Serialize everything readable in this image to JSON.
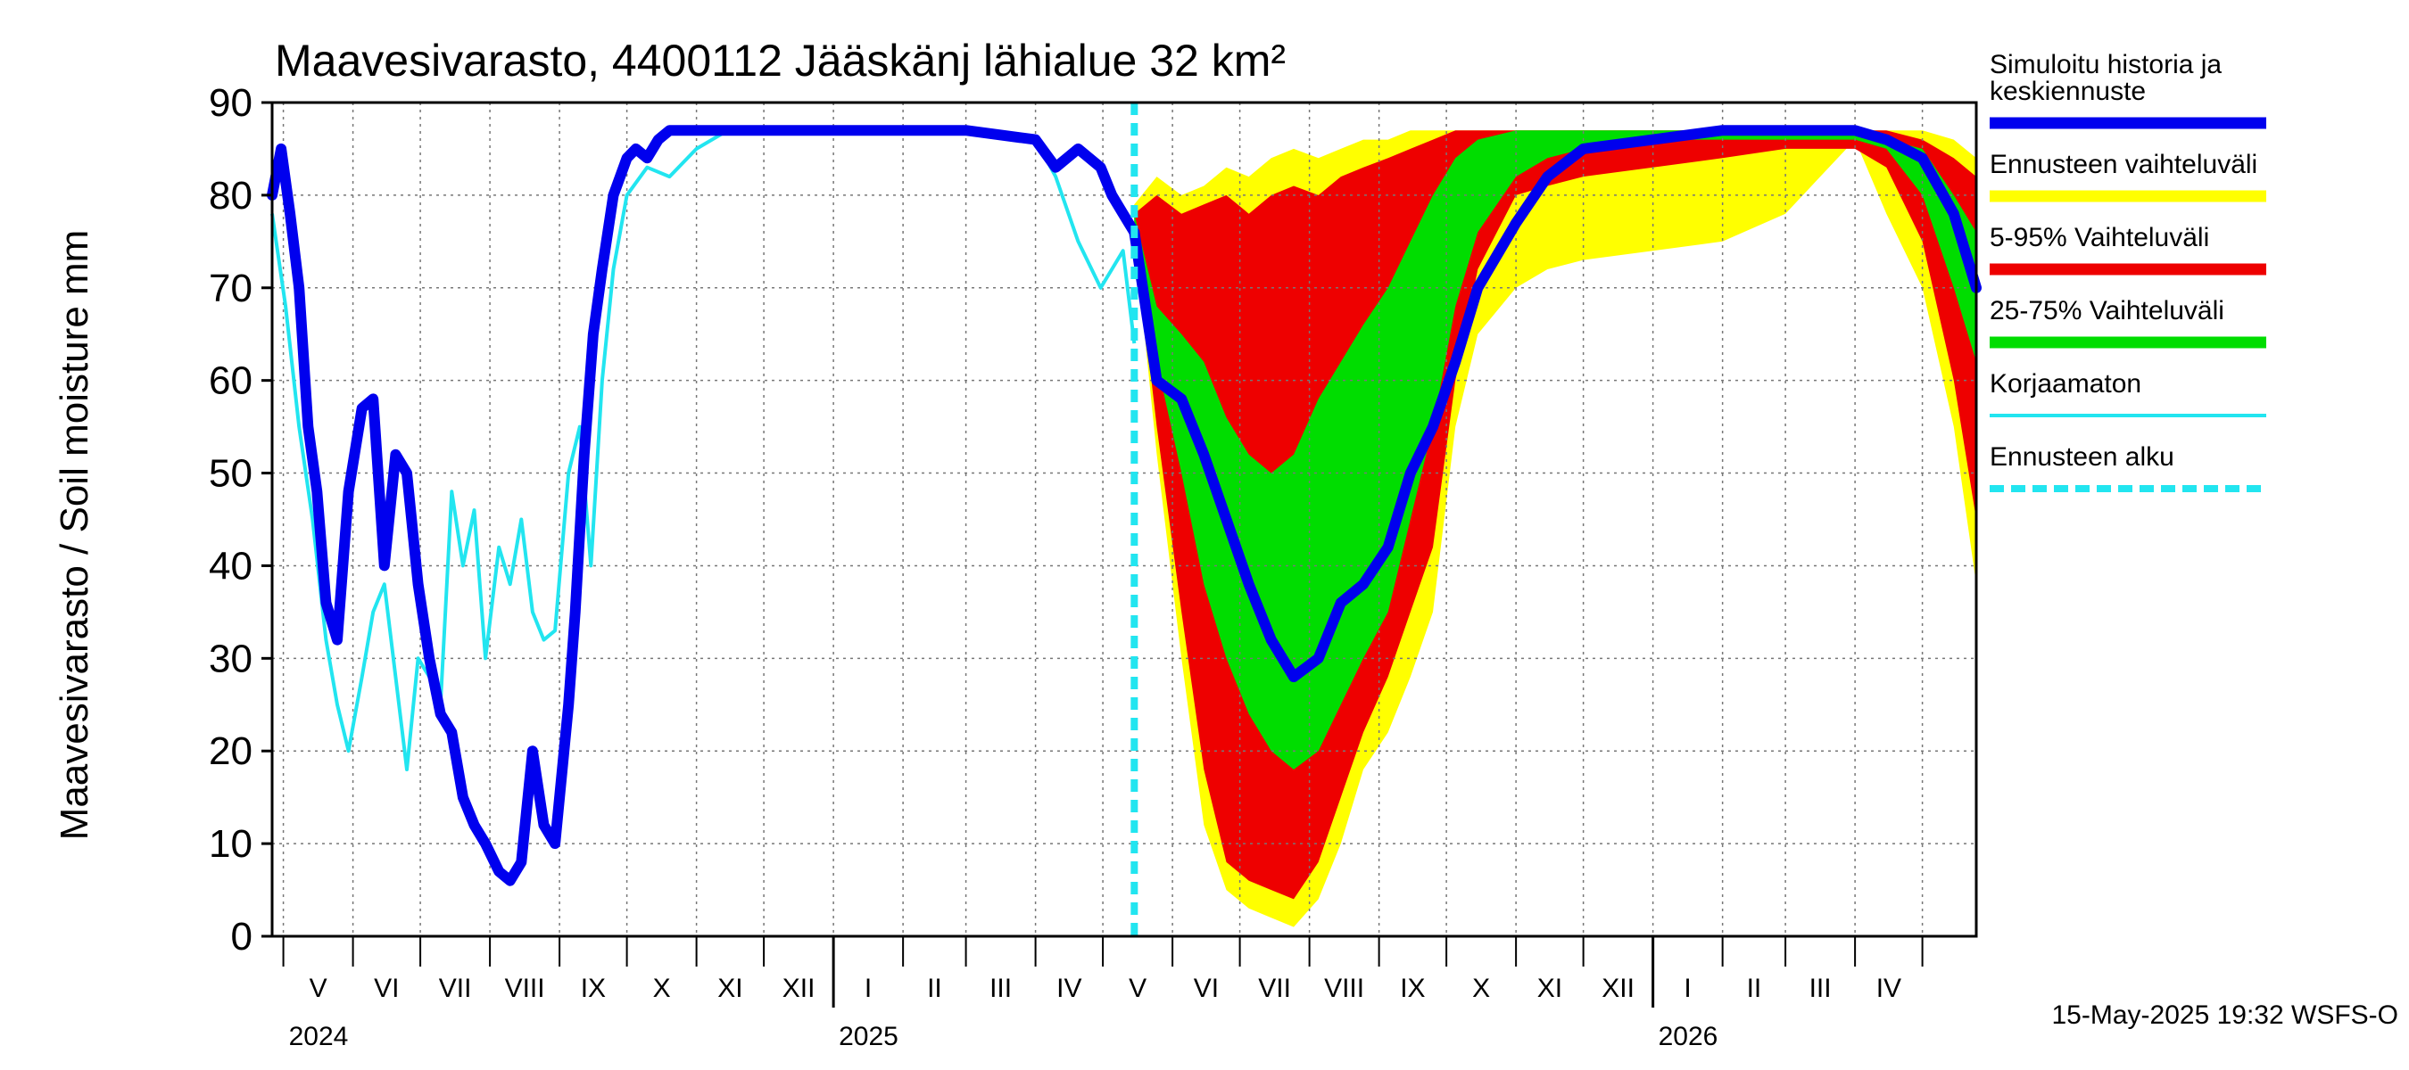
{
  "chart_data": {
    "type": "area",
    "title": "Maavesivarasto, 4400112 Jääskänj lähialue 32 km²",
    "ylabel": "Maavesivarasto / Soil moisture   mm",
    "ylim": [
      0,
      90
    ],
    "yticks": [
      "0",
      "10",
      "20",
      "30",
      "40",
      "50",
      "60",
      "70",
      "80",
      "90"
    ],
    "grid": true,
    "x_range": [
      "2024-04-26",
      "2026-05-25"
    ],
    "forecast_start": "2025-05-15",
    "months": [
      {
        "label": "V",
        "start": "2024-05-01"
      },
      {
        "label": "VI",
        "start": "2024-06-01"
      },
      {
        "label": "VII",
        "start": "2024-07-01"
      },
      {
        "label": "VIII",
        "start": "2024-08-01"
      },
      {
        "label": "IX",
        "start": "2024-09-01"
      },
      {
        "label": "X",
        "start": "2024-10-01"
      },
      {
        "label": "XI",
        "start": "2024-11-01"
      },
      {
        "label": "XII",
        "start": "2024-12-01"
      },
      {
        "label": "I",
        "start": "2025-01-01"
      },
      {
        "label": "II",
        "start": "2025-02-01"
      },
      {
        "label": "III",
        "start": "2025-03-01"
      },
      {
        "label": "IV",
        "start": "2025-04-01"
      },
      {
        "label": "V",
        "start": "2025-05-01"
      },
      {
        "label": "VI",
        "start": "2025-06-01"
      },
      {
        "label": "VII",
        "start": "2025-07-01"
      },
      {
        "label": "VIII",
        "start": "2025-08-01"
      },
      {
        "label": "IX",
        "start": "2025-09-01"
      },
      {
        "label": "X",
        "start": "2025-10-01"
      },
      {
        "label": "XI",
        "start": "2025-11-01"
      },
      {
        "label": "XII",
        "start": "2025-12-01"
      },
      {
        "label": "I",
        "start": "2026-01-01"
      },
      {
        "label": "II",
        "start": "2026-02-01"
      },
      {
        "label": "III",
        "start": "2026-03-01"
      },
      {
        "label": "IV",
        "start": "2026-04-01"
      },
      {
        "label": "",
        "start": "2026-05-01"
      }
    ],
    "years": [
      {
        "label": "2024",
        "date": "2024-05-01"
      },
      {
        "label": "2025",
        "date": "2025-01-01"
      },
      {
        "label": "2026",
        "date": "2026-01-01"
      }
    ],
    "legend_position": "right",
    "legend": [
      {
        "label": "Simuloitu historia ja keskiennuste",
        "lines": [
          "Simuloitu historia ja",
          "keskiennuste"
        ],
        "color": "#0000ee",
        "style": "thick"
      },
      {
        "label": "Ennusteen vaihteluväli",
        "lines": [
          "Ennusteen vaihteluväli"
        ],
        "color": "#ffff00",
        "style": "thick"
      },
      {
        "label": "5-95% Vaihteluväli",
        "lines": [
          "5-95% Vaihteluväli"
        ],
        "color": "#ee0000",
        "style": "thick"
      },
      {
        "label": "25-75% Vaihteluväli",
        "lines": [
          "25-75% Vaihteluväli"
        ],
        "color": "#00dd00",
        "style": "thick"
      },
      {
        "label": "Korjaamaton",
        "lines": [
          "Korjaamaton"
        ],
        "color": "#22e5f0",
        "style": "thin"
      },
      {
        "label": "Ennusteen alku",
        "lines": [
          "Ennusteen alku"
        ],
        "color": "#22e5f0",
        "style": "dashed"
      }
    ],
    "forecast_dates": [
      "2025-05-15",
      "2025-05-25",
      "2025-06-05",
      "2025-06-15",
      "2025-06-25",
      "2025-07-05",
      "2025-07-15",
      "2025-07-25",
      "2025-08-05",
      "2025-08-15",
      "2025-08-25",
      "2025-09-05",
      "2025-09-15",
      "2025-09-25",
      "2025-10-05",
      "2025-10-15",
      "2025-11-01",
      "2025-11-15",
      "2025-12-01",
      "2026-01-01",
      "2026-02-01",
      "2026-03-01",
      "2026-04-01",
      "2026-04-15",
      "2026-05-01",
      "2026-05-15",
      "2026-05-25"
    ],
    "series": [
      {
        "name": "Simuloitu historia ja keskiennuste",
        "color": "#0000ee",
        "x": [
          "2024-04-26",
          "2024-04-30",
          "2024-05-04",
          "2024-05-08",
          "2024-05-12",
          "2024-05-16",
          "2024-05-20",
          "2024-05-25",
          "2024-05-30",
          "2024-06-05",
          "2024-06-10",
          "2024-06-15",
          "2024-06-20",
          "2024-06-25",
          "2024-06-30",
          "2024-07-05",
          "2024-07-10",
          "2024-07-15",
          "2024-07-20",
          "2024-07-25",
          "2024-07-30",
          "2024-08-05",
          "2024-08-10",
          "2024-08-15",
          "2024-08-20",
          "2024-08-25",
          "2024-08-30",
          "2024-09-05",
          "2024-09-08",
          "2024-09-12",
          "2024-09-16",
          "2024-09-20",
          "2024-09-25",
          "2024-10-01",
          "2024-10-05",
          "2024-10-10",
          "2024-10-15",
          "2024-10-20",
          "2024-11-01",
          "2024-11-15",
          "2024-12-01",
          "2025-01-01",
          "2025-02-01",
          "2025-03-01",
          "2025-04-01",
          "2025-04-10",
          "2025-04-20",
          "2025-04-30",
          "2025-05-05",
          "2025-05-10",
          "2025-05-15",
          "2025-05-25",
          "2025-06-05",
          "2025-06-15",
          "2025-06-25",
          "2025-07-05",
          "2025-07-15",
          "2025-07-25",
          "2025-08-05",
          "2025-08-15",
          "2025-08-25",
          "2025-09-05",
          "2025-09-15",
          "2025-09-25",
          "2025-10-05",
          "2025-10-15",
          "2025-11-01",
          "2025-11-15",
          "2025-12-01",
          "2026-01-01",
          "2026-02-01",
          "2026-03-01",
          "2026-04-01",
          "2026-04-15",
          "2026-05-01",
          "2026-05-15",
          "2026-05-25"
        ],
        "y": [
          80,
          85,
          78,
          70,
          55,
          48,
          36,
          32,
          48,
          57,
          58,
          40,
          52,
          50,
          38,
          30,
          24,
          22,
          15,
          12,
          10,
          7,
          6,
          8,
          20,
          12,
          10,
          25,
          35,
          52,
          65,
          72,
          80,
          84,
          85,
          84,
          86,
          87,
          87,
          87,
          87,
          87,
          87,
          87,
          86,
          83,
          85,
          83,
          80,
          78,
          76,
          60,
          58,
          52,
          45,
          38,
          32,
          28,
          30,
          36,
          38,
          42,
          50,
          55,
          62,
          70,
          77,
          82,
          85,
          86,
          87,
          87,
          87,
          86,
          84,
          78,
          70
        ]
      },
      {
        "name": "Korjaamaton",
        "color": "#22e5f0",
        "x": [
          "2024-04-26",
          "2024-05-02",
          "2024-05-08",
          "2024-05-14",
          "2024-05-20",
          "2024-05-25",
          "2024-05-30",
          "2024-06-05",
          "2024-06-10",
          "2024-06-15",
          "2024-06-20",
          "2024-06-25",
          "2024-06-30",
          "2024-07-05",
          "2024-07-10",
          "2024-07-15",
          "2024-07-20",
          "2024-07-25",
          "2024-07-30",
          "2024-08-05",
          "2024-08-10",
          "2024-08-15",
          "2024-08-20",
          "2024-08-25",
          "2024-08-30",
          "2024-09-05",
          "2024-09-10",
          "2024-09-15",
          "2024-09-20",
          "2024-09-25",
          "2024-10-01",
          "2024-10-10",
          "2024-10-20",
          "2024-11-01",
          "2024-11-15",
          "2024-12-01",
          "2025-01-01",
          "2025-02-01",
          "2025-03-01",
          "2025-04-01",
          "2025-04-10",
          "2025-04-20",
          "2025-04-30",
          "2025-05-05",
          "2025-05-10",
          "2025-05-15"
        ],
        "y": [
          78,
          68,
          55,
          45,
          32,
          25,
          20,
          28,
          35,
          38,
          28,
          18,
          30,
          28,
          25,
          48,
          40,
          46,
          30,
          42,
          38,
          45,
          35,
          32,
          33,
          50,
          55,
          40,
          60,
          72,
          80,
          83,
          82,
          85,
          87,
          87,
          87,
          87,
          87,
          86,
          82,
          75,
          70,
          72,
          74,
          64
        ]
      }
    ],
    "bands": [
      {
        "name": "Ennusteen vaihteluväli",
        "color": "#ffff00",
        "low": [
          76,
          52,
          30,
          12,
          5,
          3,
          2,
          1,
          4,
          10,
          18,
          22,
          28,
          35,
          55,
          65,
          70,
          72,
          73,
          74,
          75,
          78,
          86,
          78,
          70,
          55,
          38
        ],
        "high": [
          79,
          82,
          80,
          81,
          83,
          82,
          84,
          85,
          84,
          85,
          86,
          86,
          87,
          87,
          87,
          87,
          87,
          87,
          87,
          87,
          87,
          87,
          87,
          87,
          87,
          86,
          84
        ]
      },
      {
        "name": "5-95% Vaihteluväli",
        "color": "#ee0000",
        "low": [
          76,
          55,
          35,
          18,
          8,
          6,
          5,
          4,
          8,
          15,
          22,
          28,
          35,
          42,
          60,
          72,
          80,
          81,
          82,
          83,
          84,
          85,
          85,
          83,
          75,
          60,
          45
        ],
        "high": [
          78,
          80,
          78,
          79,
          80,
          78,
          80,
          81,
          80,
          82,
          83,
          84,
          85,
          86,
          87,
          87,
          87,
          87,
          87,
          87,
          87,
          87,
          87,
          87,
          86,
          84,
          82
        ]
      },
      {
        "name": "25-75% Vaihteluväli",
        "color": "#00dd00",
        "low": [
          77,
          62,
          50,
          38,
          30,
          24,
          20,
          18,
          20,
          25,
          30,
          35,
          45,
          55,
          68,
          76,
          82,
          84,
          85,
          86,
          86,
          86,
          86,
          85,
          80,
          70,
          62
        ],
        "high": [
          78,
          68,
          65,
          62,
          56,
          52,
          50,
          52,
          58,
          62,
          66,
          70,
          75,
          80,
          84,
          86,
          87,
          87,
          87,
          87,
          87,
          87,
          87,
          86,
          85,
          80,
          76
        ]
      }
    ]
  },
  "stamp": "15-May-2025 19:32 WSFS-O"
}
